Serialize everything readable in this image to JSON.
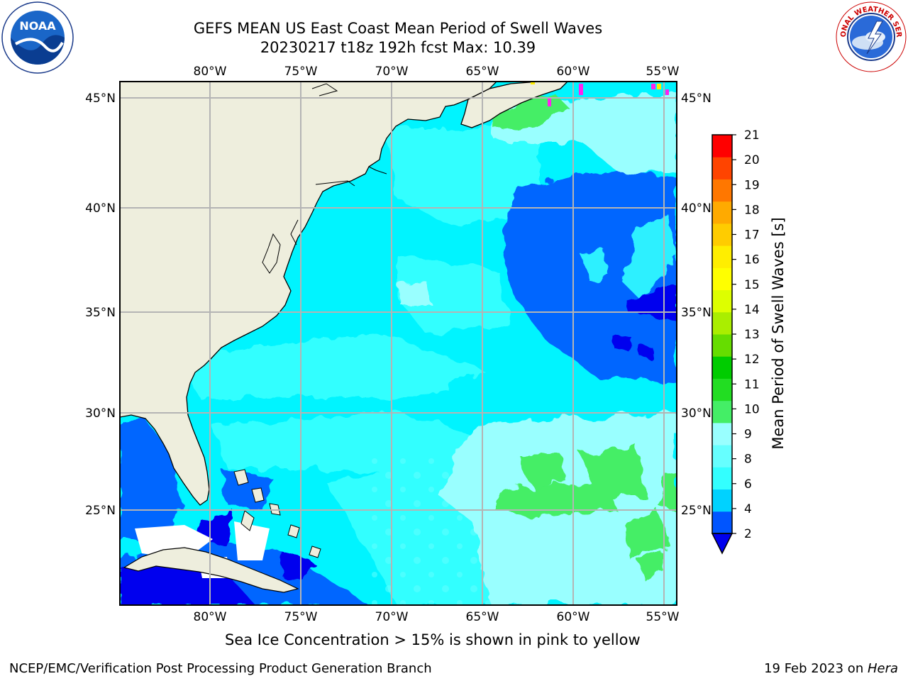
{
  "header": {
    "title_line1": "GEFS MEAN US East Coast Mean Period of Swell Waves",
    "title_line2": "20230217 t18z 192h fcst   Max: 10.39"
  },
  "logos": {
    "left": {
      "icon": "noaa-logo",
      "text": "NOAA"
    },
    "right": {
      "icon": "nws-logo",
      "text": "NATIONAL WEATHER SERVICE"
    }
  },
  "map": {
    "projection": "cylindrical lat/lon",
    "lon_range": [
      -85,
      -54.5
    ],
    "lat_range": [
      20.5,
      46
    ],
    "lon_ticks": [
      "80°W",
      "75°W",
      "70°W",
      "65°W",
      "60°W",
      "55°W"
    ],
    "lat_ticks": [
      "45°N",
      "40°N",
      "35°N",
      "30°N",
      "25°N"
    ],
    "grid": true,
    "land_color": "#eeeedd",
    "coastline_color": "#000000"
  },
  "colorbar": {
    "label": "Mean Period of Swell Waves [s]",
    "ticks": [
      "2",
      "4",
      "6",
      "8",
      "9",
      "10",
      "11",
      "12",
      "13",
      "14",
      "15",
      "16",
      "17",
      "18",
      "19",
      "20",
      "21"
    ],
    "colors": [
      "#0055ff",
      "#00d2ff",
      "#33ffff",
      "#66ffff",
      "#99ffff",
      "#44ee66",
      "#22dd22",
      "#00cc00",
      "#66dd00",
      "#aaee00",
      "#ddff00",
      "#ffff00",
      "#ffee00",
      "#ffcc00",
      "#ffaa00",
      "#ff7700",
      "#ff4400",
      "#ff0000"
    ],
    "under_color": "#0000ee"
  },
  "subtitle": "Sea Ice Concentration > 15% is shown in pink to yellow",
  "footer": {
    "left": "NCEP/EMC/Verification Post Processing Product Generation Branch",
    "right_date": "19 Feb 2023 on ",
    "right_host": "Hera"
  }
}
